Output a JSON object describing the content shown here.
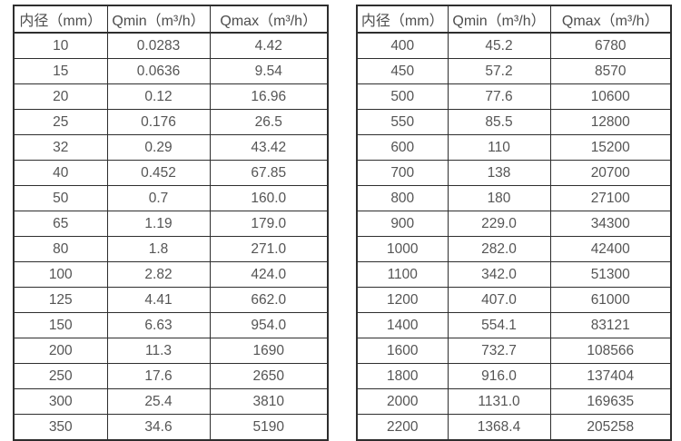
{
  "page": {
    "background_color": "#ffffff",
    "border_color": "#2e2e2e",
    "text_color": "#555555",
    "description_labels": {
      "diameter_header": "内径（mm）",
      "qmin_header": "Qmin（m³/h）",
      "qmax_header": "Qmax（m³/h）"
    }
  },
  "tables": [
    {
      "name": "flow-rates-small-diameters",
      "headers": [
        "内径（mm）",
        "Qmin（m³/h）",
        "Qmax（m³/h）"
      ],
      "rows": [
        [
          "10",
          "0.0283",
          "4.42"
        ],
        [
          "15",
          "0.0636",
          "9.54"
        ],
        [
          "20",
          "0.12",
          "16.96"
        ],
        [
          "25",
          "0.176",
          "26.5"
        ],
        [
          "32",
          "0.29",
          "43.42"
        ],
        [
          "40",
          "0.452",
          "67.85"
        ],
        [
          "50",
          "0.7",
          "160.0"
        ],
        [
          "65",
          "1.19",
          "179.0"
        ],
        [
          "80",
          "1.8",
          "271.0"
        ],
        [
          "100",
          "2.82",
          "424.0"
        ],
        [
          "125",
          "4.41",
          "662.0"
        ],
        [
          "150",
          "6.63",
          "954.0"
        ],
        [
          "200",
          "11.3",
          "1690"
        ],
        [
          "250",
          "17.6",
          "2650"
        ],
        [
          "300",
          "25.4",
          "3810"
        ],
        [
          "350",
          "34.6",
          "5190"
        ]
      ]
    },
    {
      "name": "flow-rates-large-diameters",
      "headers": [
        "内径（mm）",
        "Qmin（m³/h）",
        "Qmax（m³/h）"
      ],
      "rows": [
        [
          "400",
          "45.2",
          "6780"
        ],
        [
          "450",
          "57.2",
          "8570"
        ],
        [
          "500",
          "77.6",
          "10600"
        ],
        [
          "550",
          "85.5",
          "12800"
        ],
        [
          "600",
          "110",
          "15200"
        ],
        [
          "700",
          "138",
          "20700"
        ],
        [
          "800",
          "180",
          "27100"
        ],
        [
          "900",
          "229.0",
          "34300"
        ],
        [
          "1000",
          "282.0",
          "42400"
        ],
        [
          "1100",
          "342.0",
          "51300"
        ],
        [
          "1200",
          "407.0",
          "61000"
        ],
        [
          "1400",
          "554.1",
          "83121"
        ],
        [
          "1600",
          "732.7",
          "108566"
        ],
        [
          "1800",
          "916.0",
          "137404"
        ],
        [
          "2000",
          "1131.0",
          "169635"
        ],
        [
          "2200",
          "1368.4",
          "205258"
        ]
      ]
    }
  ],
  "chart_data": {
    "type": "table",
    "title": "",
    "tables": [
      {
        "columns": [
          "内径（mm）",
          "Qmin（m³/h）",
          "Qmax（m³/h）"
        ],
        "rows": [
          [
            10,
            0.0283,
            4.42
          ],
          [
            15,
            0.0636,
            9.54
          ],
          [
            20,
            0.12,
            16.96
          ],
          [
            25,
            0.176,
            26.5
          ],
          [
            32,
            0.29,
            43.42
          ],
          [
            40,
            0.452,
            67.85
          ],
          [
            50,
            0.7,
            160.0
          ],
          [
            65,
            1.19,
            179.0
          ],
          [
            80,
            1.8,
            271.0
          ],
          [
            100,
            2.82,
            424.0
          ],
          [
            125,
            4.41,
            662.0
          ],
          [
            150,
            6.63,
            954.0
          ],
          [
            200,
            11.3,
            1690
          ],
          [
            250,
            17.6,
            2650
          ],
          [
            300,
            25.4,
            3810
          ],
          [
            350,
            34.6,
            5190
          ]
        ]
      },
      {
        "columns": [
          "内径（mm）",
          "Qmin（m³/h）",
          "Qmax（m³/h）"
        ],
        "rows": [
          [
            400,
            45.2,
            6780
          ],
          [
            450,
            57.2,
            8570
          ],
          [
            500,
            77.6,
            10600
          ],
          [
            550,
            85.5,
            12800
          ],
          [
            600,
            110,
            15200
          ],
          [
            700,
            138,
            20700
          ],
          [
            800,
            180,
            27100
          ],
          [
            900,
            229.0,
            34300
          ],
          [
            1000,
            282.0,
            42400
          ],
          [
            1100,
            342.0,
            51300
          ],
          [
            1200,
            407.0,
            61000
          ],
          [
            1400,
            554.1,
            83121
          ],
          [
            1600,
            732.7,
            108566
          ],
          [
            1800,
            916.0,
            137404
          ],
          [
            2000,
            1131.0,
            169635
          ],
          [
            2200,
            1368.4,
            205258
          ]
        ]
      }
    ]
  }
}
